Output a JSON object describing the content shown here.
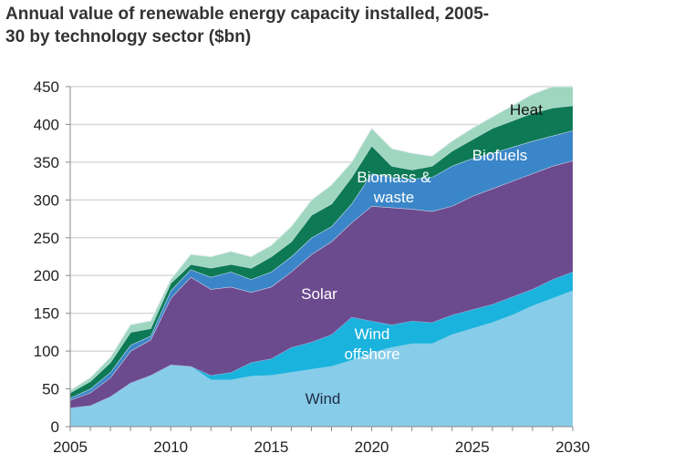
{
  "chart_data": {
    "type": "area",
    "stacked": true,
    "title": "Annual value of renewable energy capacity installed,  2005-30 by technology sector ($bn)",
    "title_lines": [
      "Annual value of renewable energy capacity installed,  2005-",
      "30 by technology sector ($bn)"
    ],
    "xlabel": "",
    "ylabel": "",
    "xlim": [
      2005,
      2030
    ],
    "ylim": [
      0,
      450
    ],
    "x_ticks": [
      "2005",
      "2010",
      "2015",
      "2020",
      "2025",
      "2030"
    ],
    "y_ticks": [
      "0",
      "50",
      "100",
      "150",
      "200",
      "250",
      "300",
      "350",
      "400",
      "450"
    ],
    "grid": true,
    "legend": "inline labels",
    "x": [
      2005,
      2006,
      2007,
      2008,
      2009,
      2010,
      2011,
      2012,
      2013,
      2014,
      2015,
      2016,
      2017,
      2018,
      2019,
      2020,
      2021,
      2022,
      2023,
      2024,
      2025,
      2026,
      2027,
      2028,
      2029,
      2030
    ],
    "series": [
      {
        "name": "Wind",
        "label_lines": [
          "Wind"
        ],
        "color": "#87cde9",
        "label_color": "#1f2a44",
        "values": [
          25,
          28,
          40,
          58,
          68,
          82,
          80,
          62,
          62,
          67,
          68,
          72,
          76,
          80,
          88,
          98,
          105,
          110,
          110,
          122,
          130,
          138,
          148,
          160,
          170,
          180
        ]
      },
      {
        "name": "Wind offshore",
        "label_lines": [
          "Wind",
          "offshore"
        ],
        "color": "#1ab3dd",
        "label_color": "#ffffff",
        "values": [
          0,
          0,
          0,
          0,
          0,
          0,
          0,
          6,
          10,
          18,
          22,
          33,
          36,
          42,
          57,
          42,
          30,
          30,
          28,
          26,
          25,
          24,
          24,
          22,
          25,
          25
        ]
      },
      {
        "name": "Solar",
        "label_lines": [
          "Solar"
        ],
        "color": "#6b4a8e",
        "label_color": "#ffffff",
        "values": [
          10,
          17,
          25,
          42,
          47,
          88,
          118,
          114,
          113,
          93,
          95,
          100,
          116,
          123,
          125,
          152,
          155,
          148,
          147,
          144,
          150,
          153,
          153,
          153,
          150,
          147
        ]
      },
      {
        "name": "Biomass & waste",
        "label_lines": [
          "Biomass &",
          "waste"
        ],
        "color": "#3a86c8",
        "label_color": "#ffffff",
        "values": [
          3,
          5,
          7,
          8,
          5,
          10,
          10,
          16,
          20,
          17,
          20,
          20,
          22,
          20,
          25,
          43,
          40,
          40,
          45,
          53,
          50,
          47,
          45,
          43,
          40,
          40
        ]
      },
      {
        "name": "Biofuels",
        "label_lines": [
          "Biofuels"
        ],
        "color": "#0d7a55",
        "label_color": "#ffffff",
        "values": [
          7,
          10,
          13,
          17,
          10,
          10,
          7,
          12,
          10,
          15,
          20,
          20,
          30,
          30,
          35,
          37,
          15,
          12,
          15,
          20,
          25,
          33,
          35,
          37,
          37,
          33
        ]
      },
      {
        "name": "Heat",
        "label_lines": [
          "Heat"
        ],
        "color": "#9ed6c0",
        "label_color": "#111111",
        "values": [
          3,
          5,
          7,
          10,
          10,
          5,
          13,
          15,
          17,
          15,
          15,
          20,
          20,
          25,
          20,
          23,
          23,
          22,
          13,
          13,
          15,
          15,
          20,
          25,
          30,
          25
        ]
      }
    ]
  }
}
